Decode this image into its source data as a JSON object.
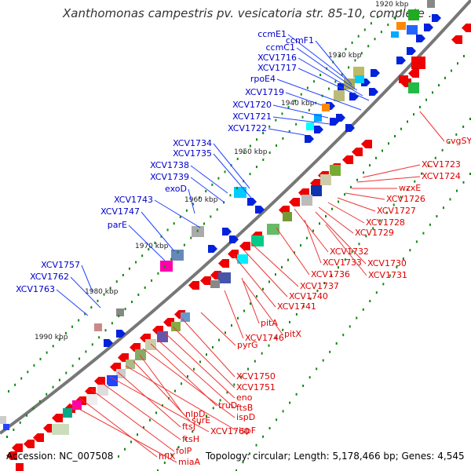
{
  "title": "Xanthomonas campestris pv. vesicatoria str. 85-10, complete ...",
  "footer": {
    "accession": "Accession: NC_007508",
    "summary": "Topology: circular; Length: 5,178,466 bp; Genes: 4,545"
  },
  "colors": {
    "forward_label": "#0000cc",
    "reverse_label": "#dd0000",
    "backbone": "#777777",
    "tick": "#118811"
  },
  "kbp_ticks": [
    "1920 kbp",
    "1930 kbp",
    "1940 kbp",
    "1950 kbp",
    "1960 kbp",
    "1970 kbp",
    "1980 kbp",
    "1990 kbp"
  ],
  "forward_genes": [
    "ccmE1",
    "ccmF1",
    "ccmC1",
    "XCV1716",
    "XCV1717",
    "rpoE4",
    "XCV1719",
    "XCV1720",
    "XCV1721",
    "XCV1722",
    "XCV1734",
    "XCV1735",
    "XCV1738",
    "XCV1739",
    "exoD",
    "XCV1743",
    "XCV1747",
    "parE",
    "XCV1757",
    "XCV1762",
    "XCV1763"
  ],
  "reverse_genes": [
    "cvgSY",
    "XCV1723",
    "XCV1724",
    "wzxE",
    "XCV1726",
    "XCV1727",
    "XCV1728",
    "XCV1729",
    "XCV1732",
    "XCV1733",
    "XCV1730",
    "XCV1736",
    "XCV1731",
    "XCV1737",
    "XCV1740",
    "XCV1741",
    "pitA",
    "pitX",
    "XCV1746",
    "pyrG",
    "XCV1750",
    "XCV1751",
    "eno",
    "ftsB",
    "truD",
    "ispD",
    "nlpD",
    "surE",
    "ispF",
    "ftsJ",
    "XCV1760",
    "ftsH",
    "folP",
    "hflX",
    "miaA"
  ]
}
